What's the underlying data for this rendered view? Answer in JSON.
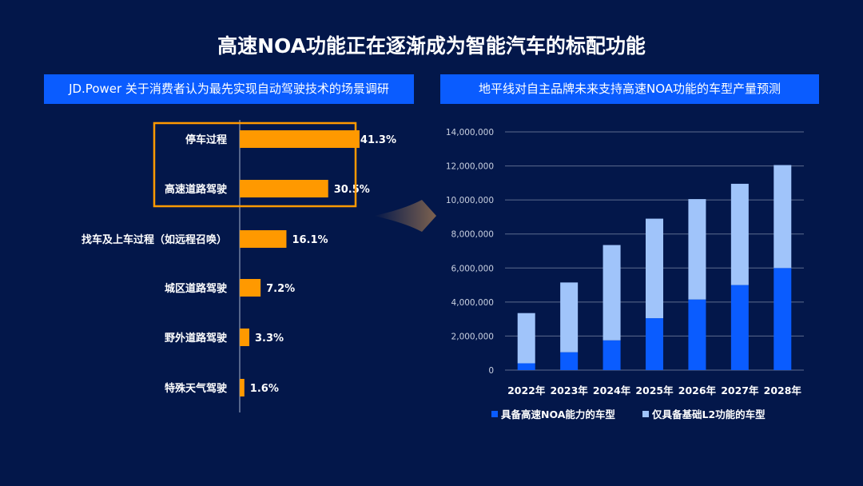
{
  "title": "高速NOA功能正在逐渐成为智能汽车的标配功能",
  "chart_data": [
    {
      "type": "bar",
      "orientation": "horizontal",
      "title": "JD.Power 关于消费者认为最先实现自动驾驶技术的场景调研",
      "categories": [
        "停车过程",
        "高速道路驾驶",
        "找车及上车过程（如远程召唤）",
        "城区道路驾驶",
        "野外道路驾驶",
        "特殊天气驾驶"
      ],
      "values": [
        41.3,
        30.5,
        16.1,
        7.2,
        3.3,
        1.6
      ],
      "data_labels": [
        "41.3%",
        "30.5%",
        "16.1%",
        "7.2%",
        "3.3%",
        "1.6%"
      ],
      "highlighted": [
        "停车过程",
        "高速道路驾驶"
      ],
      "colors": {
        "bar": "#ff9900",
        "highlight_box": "#ff9900"
      }
    },
    {
      "type": "bar",
      "stacked": true,
      "title": "地平线对自主品牌未来支持高速NOA功能的车型产量预测",
      "categories": [
        "2022年",
        "2023年",
        "2024年",
        "2025年",
        "2026年",
        "2027年",
        "2028年"
      ],
      "series": [
        {
          "name": "具备高速NOA能力的车型",
          "values": [
            400000,
            1050000,
            1750000,
            3050000,
            4150000,
            5000000,
            6000000
          ],
          "color": "#0a5cff"
        },
        {
          "name": "仅具备基础L2功能的车型",
          "values": [
            2950000,
            4100000,
            5600000,
            5850000,
            5900000,
            5950000,
            6050000
          ],
          "color": "#a0c4fa"
        }
      ],
      "ylim": [
        0,
        14000000
      ],
      "yticks": [
        "0",
        "2,000,000",
        "4,000,000",
        "6,000,000",
        "8,000,000",
        "10,000,000",
        "12,000,000",
        "14,000,000"
      ],
      "grid": true,
      "legend": "bottom"
    }
  ]
}
